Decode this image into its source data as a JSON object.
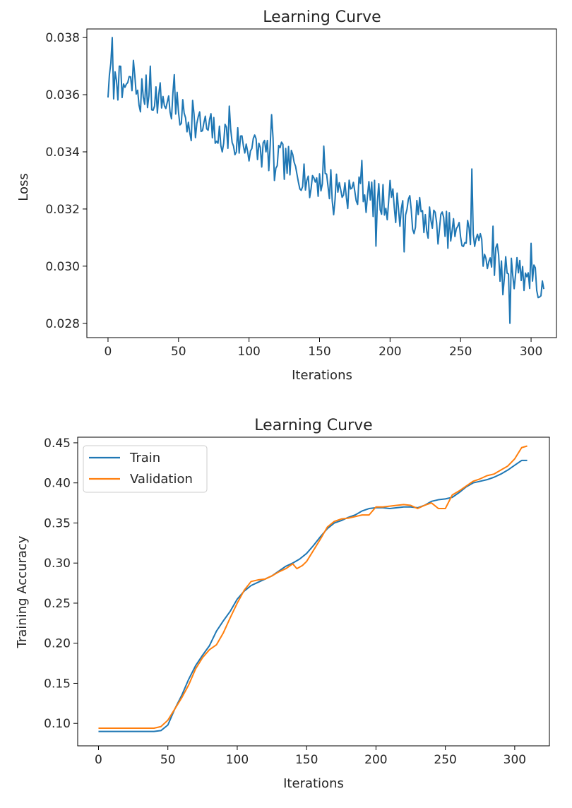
{
  "chart_data": [
    {
      "type": "line",
      "title": "Learning Curve",
      "xlabel": "Iterations",
      "ylabel": "Loss",
      "xlim": [
        -15,
        318
      ],
      "ylim": [
        0.0275,
        0.0383
      ],
      "xticks": [
        0,
        50,
        100,
        150,
        200,
        250,
        300
      ],
      "xtick_labels": [
        "0",
        "50",
        "100",
        "150",
        "200",
        "250",
        "300"
      ],
      "yticks": [
        0.028,
        0.03,
        0.032,
        0.034,
        0.036,
        0.038
      ],
      "ytick_labels": [
        "0.028",
        "0.030",
        "0.032",
        "0.034",
        "0.036",
        "0.038"
      ],
      "grid": false,
      "legend": false,
      "x_start": 0,
      "x_step": 1,
      "trend": [
        [
          0,
          0.0365
        ],
        [
          20,
          0.0362
        ],
        [
          40,
          0.0358
        ],
        [
          60,
          0.035
        ],
        [
          80,
          0.0346
        ],
        [
          100,
          0.0342
        ],
        [
          120,
          0.0338
        ],
        [
          140,
          0.0332
        ],
        [
          160,
          0.0328
        ],
        [
          180,
          0.0325
        ],
        [
          200,
          0.0322
        ],
        [
          220,
          0.0317
        ],
        [
          240,
          0.0313
        ],
        [
          260,
          0.0308
        ],
        [
          280,
          0.03
        ],
        [
          300,
          0.0296
        ],
        [
          309,
          0.0292
        ]
      ],
      "spikes": [
        [
          0,
          0.0359
        ],
        [
          1,
          0.0367
        ],
        [
          2,
          0.0371
        ],
        [
          3,
          0.038
        ],
        [
          5,
          0.0368
        ],
        [
          6,
          0.0365
        ],
        [
          8,
          0.037
        ],
        [
          10,
          0.0359
        ],
        [
          18,
          0.0372
        ],
        [
          23,
          0.0354
        ],
        [
          30,
          0.037
        ],
        [
          33,
          0.0356
        ],
        [
          47,
          0.0367
        ],
        [
          56,
          0.0347
        ],
        [
          60,
          0.0358
        ],
        [
          78,
          0.0343
        ],
        [
          86,
          0.0356
        ],
        [
          90,
          0.0339
        ],
        [
          112,
          0.034
        ],
        [
          116,
          0.0353
        ],
        [
          118,
          0.033
        ],
        [
          143,
          0.0324
        ],
        [
          153,
          0.0342
        ],
        [
          160,
          0.0318
        ],
        [
          180,
          0.0337
        ],
        [
          190,
          0.0307
        ],
        [
          200,
          0.033
        ],
        [
          210,
          0.0305
        ],
        [
          221,
          0.0324
        ],
        [
          255,
          0.0316
        ],
        [
          258,
          0.0334
        ],
        [
          263,
          0.0309
        ],
        [
          266,
          0.03
        ],
        [
          273,
          0.0314
        ],
        [
          280,
          0.029
        ],
        [
          285,
          0.028
        ],
        [
          290,
          0.0303
        ],
        [
          300,
          0.0308
        ],
        [
          305,
          0.0289
        ],
        [
          309,
          0.0292
        ]
      ],
      "series": [
        {
          "name": "Loss",
          "color": "#1f77b4",
          "seed": 7,
          "noise": 0.00065,
          "spike_noise": 0.0
        }
      ]
    },
    {
      "type": "line",
      "title": "Learning Curve",
      "xlabel": "Iterations",
      "ylabel": "Training Accuracy",
      "xlim": [
        -15,
        325
      ],
      "ylim": [
        0.072,
        0.457
      ],
      "xticks": [
        0,
        50,
        100,
        150,
        200,
        250,
        300
      ],
      "xtick_labels": [
        "0",
        "50",
        "100",
        "150",
        "200",
        "250",
        "300"
      ],
      "yticks": [
        0.1,
        0.15,
        0.2,
        0.25,
        0.3,
        0.35,
        0.4,
        0.45
      ],
      "ytick_labels": [
        "0.10",
        "0.15",
        "0.20",
        "0.25",
        "0.30",
        "0.35",
        "0.40",
        "0.45"
      ],
      "grid": false,
      "legend": true,
      "legend_position": "top-left",
      "series": [
        {
          "name": "Train",
          "color": "#1f77b4",
          "points": [
            [
              0,
              0.09
            ],
            [
              10,
              0.09
            ],
            [
              20,
              0.09
            ],
            [
              30,
              0.09
            ],
            [
              40,
              0.09
            ],
            [
              45,
              0.091
            ],
            [
              50,
              0.098
            ],
            [
              55,
              0.118
            ],
            [
              60,
              0.135
            ],
            [
              65,
              0.155
            ],
            [
              70,
              0.172
            ],
            [
              75,
              0.185
            ],
            [
              80,
              0.197
            ],
            [
              85,
              0.215
            ],
            [
              90,
              0.228
            ],
            [
              95,
              0.24
            ],
            [
              100,
              0.255
            ],
            [
              105,
              0.265
            ],
            [
              110,
              0.272
            ],
            [
              115,
              0.276
            ],
            [
              120,
              0.28
            ],
            [
              125,
              0.284
            ],
            [
              130,
              0.29
            ],
            [
              135,
              0.296
            ],
            [
              140,
              0.3
            ],
            [
              145,
              0.305
            ],
            [
              150,
              0.312
            ],
            [
              155,
              0.322
            ],
            [
              160,
              0.333
            ],
            [
              165,
              0.343
            ],
            [
              170,
              0.35
            ],
            [
              175,
              0.353
            ],
            [
              180,
              0.357
            ],
            [
              185,
              0.36
            ],
            [
              190,
              0.365
            ],
            [
              195,
              0.368
            ],
            [
              200,
              0.369
            ],
            [
              205,
              0.369
            ],
            [
              210,
              0.368
            ],
            [
              215,
              0.369
            ],
            [
              220,
              0.37
            ],
            [
              225,
              0.37
            ],
            [
              230,
              0.369
            ],
            [
              235,
              0.372
            ],
            [
              240,
              0.377
            ],
            [
              245,
              0.379
            ],
            [
              250,
              0.38
            ],
            [
              255,
              0.382
            ],
            [
              260,
              0.388
            ],
            [
              265,
              0.395
            ],
            [
              270,
              0.4
            ],
            [
              275,
              0.402
            ],
            [
              280,
              0.404
            ],
            [
              285,
              0.407
            ],
            [
              290,
              0.411
            ],
            [
              295,
              0.416
            ],
            [
              300,
              0.422
            ],
            [
              305,
              0.428
            ],
            [
              309,
              0.428
            ]
          ]
        },
        {
          "name": "Validation",
          "color": "#ff7f0e",
          "points": [
            [
              0,
              0.094
            ],
            [
              10,
              0.094
            ],
            [
              20,
              0.094
            ],
            [
              30,
              0.094
            ],
            [
              40,
              0.094
            ],
            [
              45,
              0.096
            ],
            [
              50,
              0.104
            ],
            [
              55,
              0.118
            ],
            [
              60,
              0.132
            ],
            [
              65,
              0.148
            ],
            [
              70,
              0.168
            ],
            [
              75,
              0.182
            ],
            [
              80,
              0.192
            ],
            [
              85,
              0.198
            ],
            [
              90,
              0.213
            ],
            [
              95,
              0.232
            ],
            [
              100,
              0.25
            ],
            [
              105,
              0.266
            ],
            [
              110,
              0.277
            ],
            [
              115,
              0.279
            ],
            [
              120,
              0.28
            ],
            [
              125,
              0.284
            ],
            [
              130,
              0.289
            ],
            [
              135,
              0.293
            ],
            [
              140,
              0.299
            ],
            [
              143,
              0.293
            ],
            [
              147,
              0.297
            ],
            [
              150,
              0.302
            ],
            [
              155,
              0.316
            ],
            [
              160,
              0.33
            ],
            [
              165,
              0.345
            ],
            [
              170,
              0.352
            ],
            [
              175,
              0.355
            ],
            [
              180,
              0.356
            ],
            [
              185,
              0.358
            ],
            [
              190,
              0.36
            ],
            [
              195,
              0.36
            ],
            [
              200,
              0.37
            ],
            [
              205,
              0.37
            ],
            [
              210,
              0.371
            ],
            [
              215,
              0.372
            ],
            [
              220,
              0.373
            ],
            [
              225,
              0.372
            ],
            [
              230,
              0.368
            ],
            [
              235,
              0.372
            ],
            [
              240,
              0.375
            ],
            [
              245,
              0.368
            ],
            [
              250,
              0.368
            ],
            [
              255,
              0.385
            ],
            [
              260,
              0.39
            ],
            [
              265,
              0.396
            ],
            [
              270,
              0.402
            ],
            [
              275,
              0.405
            ],
            [
              280,
              0.409
            ],
            [
              285,
              0.411
            ],
            [
              290,
              0.416
            ],
            [
              295,
              0.421
            ],
            [
              300,
              0.43
            ],
            [
              305,
              0.444
            ],
            [
              309,
              0.446
            ]
          ]
        }
      ]
    }
  ]
}
